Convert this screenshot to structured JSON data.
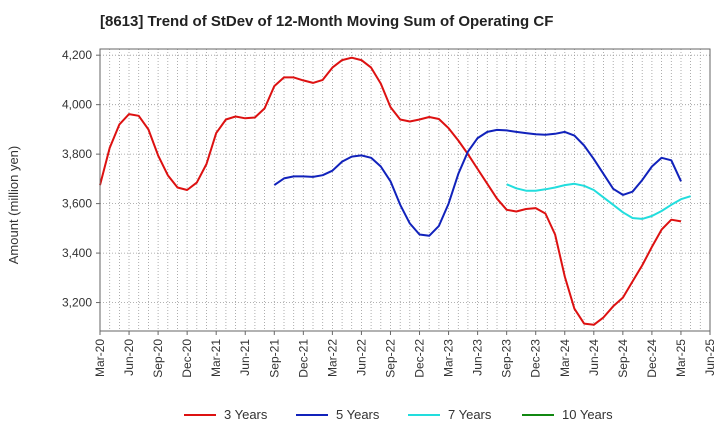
{
  "chart_data": {
    "type": "line",
    "title": "[8613]  Trend of StDev of 12-Month Moving Sum of Operating CF",
    "ylabel": "Amount (million yen)",
    "xlabel": "",
    "ylim": [
      3085,
      4225
    ],
    "yticks": [
      3200,
      3400,
      3600,
      3800,
      4000,
      4200
    ],
    "ytick_labels": [
      "3,200",
      "3,400",
      "3,600",
      "3,800",
      "4,000",
      "4,200"
    ],
    "x_start": "Mar-20",
    "x_end": "Jun-25",
    "xtick_labels": [
      "Mar-20",
      "Jun-20",
      "Sep-20",
      "Dec-20",
      "Mar-21",
      "Jun-21",
      "Sep-21",
      "Dec-21",
      "Mar-22",
      "Jun-22",
      "Sep-22",
      "Dec-22",
      "Mar-23",
      "Jun-23",
      "Sep-23",
      "Dec-23",
      "Mar-24",
      "Jun-24",
      "Sep-24",
      "Dec-24",
      "Mar-25",
      "Jun-25"
    ],
    "grid": true,
    "legend_position": "bottom",
    "series": [
      {
        "name": "3 Years",
        "color": "#dd1111",
        "start": "Mar-20",
        "values": [
          3675,
          3825,
          3920,
          3962,
          3955,
          3900,
          3795,
          3715,
          3665,
          3655,
          3685,
          3760,
          3885,
          3940,
          3952,
          3945,
          3948,
          3985,
          4075,
          4110,
          4110,
          4098,
          4088,
          4100,
          4150,
          4180,
          4190,
          4180,
          4150,
          4085,
          3990,
          3940,
          3932,
          3940,
          3950,
          3942,
          3905,
          3855,
          3800,
          3740,
          3680,
          3620,
          3575,
          3568,
          3578,
          3582,
          3560,
          3475,
          3305,
          3175,
          3115,
          3110,
          3140,
          3185,
          3220,
          3285,
          3350,
          3425,
          3495,
          3535,
          3528
        ]
      },
      {
        "name": "5 Years",
        "color": "#1122bb",
        "start": "Sep-21",
        "values": [
          3675,
          3702,
          3710,
          3710,
          3708,
          3715,
          3733,
          3770,
          3790,
          3795,
          3785,
          3750,
          3690,
          3595,
          3520,
          3475,
          3470,
          3510,
          3600,
          3720,
          3810,
          3865,
          3890,
          3898,
          3896,
          3890,
          3885,
          3880,
          3878,
          3882,
          3890,
          3875,
          3835,
          3780,
          3720,
          3660,
          3635,
          3648,
          3695,
          3750,
          3785,
          3775,
          3690
        ]
      },
      {
        "name": "7 Years",
        "color": "#22dddd",
        "start": "Sep-23",
        "values": [
          3678,
          3662,
          3652,
          3652,
          3658,
          3665,
          3675,
          3680,
          3672,
          3655,
          3625,
          3595,
          3565,
          3542,
          3538,
          3550,
          3570,
          3595,
          3618,
          3630
        ]
      },
      {
        "name": "10 Years",
        "color": "#118811",
        "start": "Sep-23",
        "values": []
      }
    ]
  },
  "legend": {
    "items": [
      {
        "label": "3 Years",
        "color": "#dd1111"
      },
      {
        "label": "5 Years",
        "color": "#1122bb"
      },
      {
        "label": "7 Years",
        "color": "#22dddd"
      },
      {
        "label": "10 Years",
        "color": "#118811"
      }
    ]
  }
}
